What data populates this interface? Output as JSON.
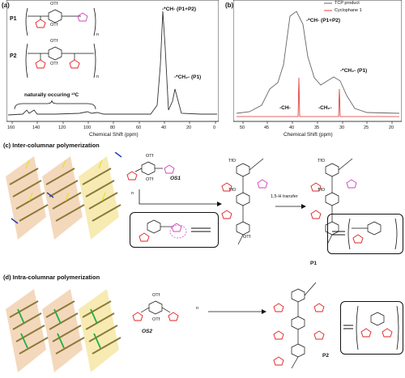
{
  "panel_a": {
    "label": "(a)",
    "p1_label": "P1",
    "p2_label": "P2",
    "annot_ch": "-*CH- (P1+P2)",
    "annot_ch2": "-*CH₂- (P1)",
    "annot_c13": "naturally occuring ¹³C",
    "otf": "OTf",
    "n": "n",
    "xlabel": "Chemical Shift (ppm)",
    "ticks": [
      "160",
      "140",
      "120",
      "100",
      "80",
      "60",
      "40",
      "20",
      "0"
    ]
  },
  "panel_b": {
    "label": "(b)",
    "legend": [
      {
        "name": "TCP product",
        "color": "#555555"
      },
      {
        "name": "Cyclophane 1",
        "color": "#e03030"
      }
    ],
    "annot_ch": "-*CH- (P1+P2)",
    "annot_ch2": "-*CH₂- (P1)",
    "annot_ch_small": "-CH-",
    "annot_ch2_small": "-CH₂-",
    "xlabel": "Chemical Shift (ppm)",
    "ticks": [
      "50",
      "45",
      "40",
      "35",
      "30",
      "25",
      "20"
    ]
  },
  "panel_c": {
    "title": "(c) Inter-columnar polymerization",
    "os1": "OS1",
    "n": "n",
    "otf": "OTf",
    "tfo": "TfO",
    "transfer": "1,5-H transfer",
    "product": "P1"
  },
  "panel_d": {
    "title": "(d) Intra-columnar polymerization",
    "os2": "OS2",
    "n": "n",
    "otf": "OTf",
    "tfo": "TfO",
    "product": "P2"
  },
  "colors": {
    "furan": "#e02020",
    "furan_pink": "#d040c0",
    "tcp": "#555555",
    "cyclophane": "#e03030",
    "stack_orange": "#f0c8a0",
    "stack_yellow": "#f5e6a0"
  }
}
